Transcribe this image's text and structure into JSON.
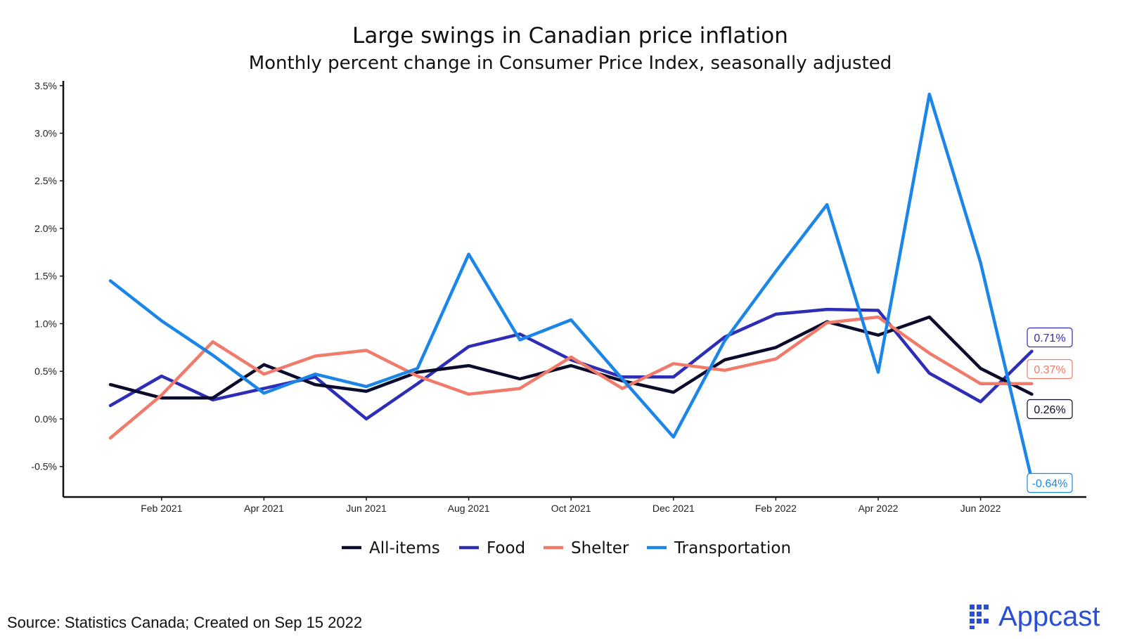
{
  "chart_data": {
    "type": "line",
    "title": "Large swings in Canadian price inflation",
    "subtitle": "Monthly percent change in Consumer Price Index, seasonally adjusted",
    "x": [
      "2021-01",
      "2021-02",
      "2021-03",
      "2021-04",
      "2021-05",
      "2021-06",
      "2021-07",
      "2021-08",
      "2021-09",
      "2021-10",
      "2021-11",
      "2021-12",
      "2022-01",
      "2022-02",
      "2022-03",
      "2022-04",
      "2022-05",
      "2022-06",
      "2022-07"
    ],
    "x_tick_labels": [
      {
        "x": "2021-02",
        "label": "Feb 2021"
      },
      {
        "x": "2021-04",
        "label": "Apr 2021"
      },
      {
        "x": "2021-06",
        "label": "Jun 2021"
      },
      {
        "x": "2021-08",
        "label": "Aug 2021"
      },
      {
        "x": "2021-10",
        "label": "Oct 2021"
      },
      {
        "x": "2021-12",
        "label": "Dec 2021"
      },
      {
        "x": "2022-02",
        "label": "Feb 2022"
      },
      {
        "x": "2022-04",
        "label": "Apr 2022"
      },
      {
        "x": "2022-06",
        "label": "Jun 2022"
      }
    ],
    "y_ticks": [
      -0.5,
      0.0,
      0.5,
      1.0,
      1.5,
      2.0,
      2.5,
      3.0,
      3.5
    ],
    "y_tick_labels": [
      "-0.5%",
      "0.0%",
      "0.5%",
      "1.0%",
      "1.5%",
      "2.0%",
      "2.5%",
      "3.0%",
      "3.5%"
    ],
    "ylim": [
      -0.82,
      3.55
    ],
    "xlim": [
      "2020-12",
      "2022-07"
    ],
    "xlabel": "",
    "ylabel": "",
    "grid": false,
    "legend_position": "bottom",
    "series": [
      {
        "name": "All-items",
        "color": "#0b0b2b",
        "values": [
          0.36,
          0.22,
          0.22,
          0.57,
          0.36,
          0.29,
          0.49,
          0.56,
          0.42,
          0.56,
          0.4,
          0.28,
          0.62,
          0.75,
          1.02,
          0.88,
          1.07,
          0.53,
          0.26
        ],
        "end_label": "0.26%"
      },
      {
        "name": "Food",
        "color": "#2d2db5",
        "values": [
          0.14,
          0.45,
          0.2,
          0.32,
          0.44,
          0.0,
          0.37,
          0.76,
          0.89,
          0.62,
          0.44,
          0.44,
          0.86,
          1.1,
          1.15,
          1.14,
          0.48,
          0.18,
          0.71
        ],
        "end_label": "0.71%"
      },
      {
        "name": "Shelter",
        "color": "#f07b6b",
        "values": [
          -0.2,
          0.25,
          0.81,
          0.47,
          0.66,
          0.72,
          0.45,
          0.26,
          0.32,
          0.65,
          0.32,
          0.58,
          0.51,
          0.63,
          1.01,
          1.07,
          0.69,
          0.37,
          0.37
        ],
        "end_label": "0.37%"
      },
      {
        "name": "Transportation",
        "color": "#1c86e8",
        "values": [
          1.45,
          1.03,
          0.67,
          0.27,
          0.47,
          0.34,
          0.53,
          1.73,
          0.83,
          1.04,
          0.42,
          -0.19,
          0.82,
          1.55,
          2.25,
          0.49,
          3.41,
          1.64,
          -0.64
        ],
        "end_label": "-0.64%"
      }
    ]
  },
  "footer": {
    "source": "Source: Statistics Canada; Created on Sep 15 2022",
    "brand": "Appcast",
    "brand_color": "#2a4fd6"
  }
}
